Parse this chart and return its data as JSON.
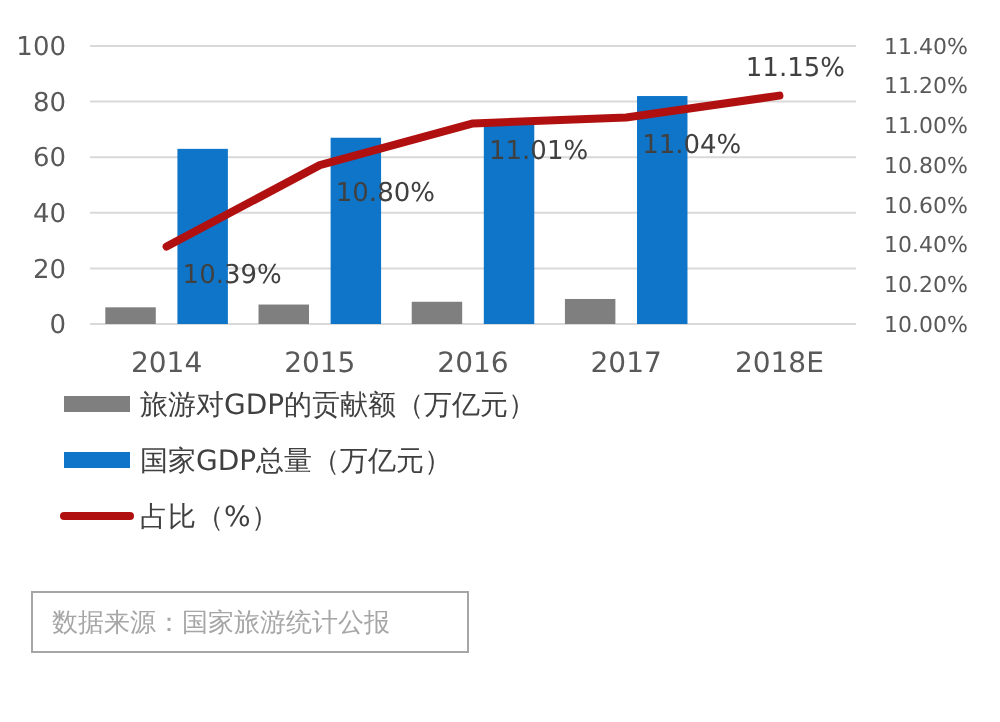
{
  "chart_data": {
    "type": "bar",
    "categories": [
      "2014",
      "2015",
      "2016",
      "2017",
      "2018E"
    ],
    "series": [
      {
        "name": "旅游对GDP的贡献额（万亿元）",
        "color": "#7f7f7f",
        "values": [
          6,
          7,
          8,
          9,
          null
        ]
      },
      {
        "name": "国家GDP总量（万亿元）",
        "color": "#0f75c8",
        "values": [
          63,
          67,
          73,
          82,
          null
        ]
      },
      {
        "name": "占比（%）",
        "type": "line",
        "axis": "y2",
        "color": "#b01010",
        "values": [
          10.39,
          10.8,
          11.01,
          11.04,
          11.15
        ],
        "value_labels": [
          "10.39%",
          "10.80%",
          "11.01%",
          "11.04%",
          "11.15%"
        ]
      }
    ],
    "ylim": [
      0,
      100
    ],
    "yticks": [
      0,
      20,
      40,
      60,
      80,
      100
    ],
    "y2lim": [
      10.0,
      11.4
    ],
    "y2ticks": [
      {
        "value": 10.0,
        "label": "10.00%"
      },
      {
        "value": 10.2,
        "label": "10.20%"
      },
      {
        "value": 10.4,
        "label": "10.40%"
      },
      {
        "value": 10.6,
        "label": "10.60%"
      },
      {
        "value": 10.8,
        "label": "10.80%"
      },
      {
        "value": 11.0,
        "label": "11.00%"
      },
      {
        "value": 11.2,
        "label": "11.20%"
      },
      {
        "value": 11.4,
        "label": "11.40%"
      }
    ],
    "grid": "y",
    "legend": "bottom",
    "marker": "none",
    "line_style": "solid",
    "annotations": [
      "数据来源：国家旅游统计公报"
    ]
  }
}
